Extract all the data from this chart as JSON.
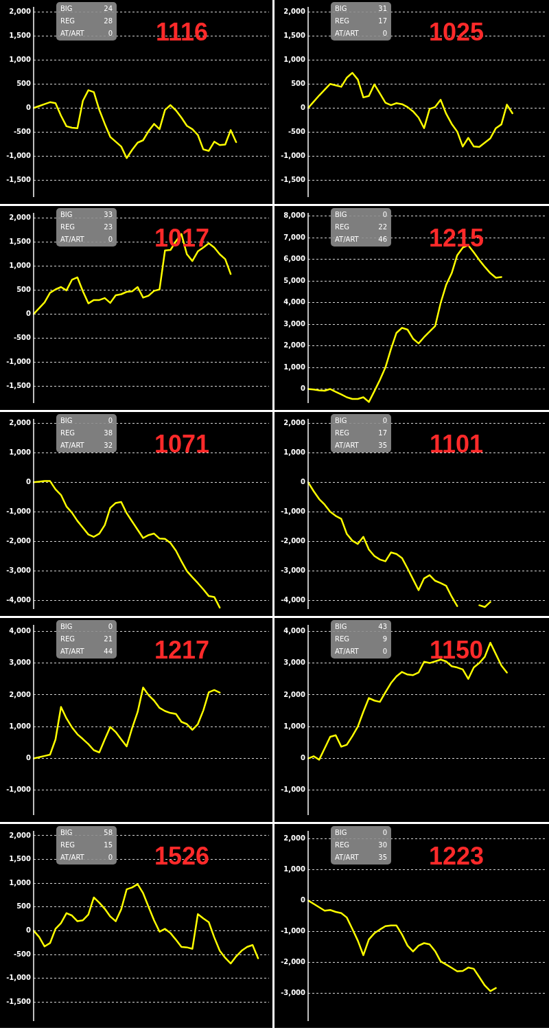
{
  "chart_data": [
    {
      "type": "line",
      "title": "1116",
      "annotations": [
        "BIG",
        "24",
        "REG",
        "28",
        "AT/ART",
        "0"
      ],
      "categories": [
        null,
        null,
        null,
        null,
        null,
        null,
        null,
        null,
        null,
        null,
        null,
        null,
        null,
        null,
        null,
        null,
        null,
        null,
        null,
        null,
        null,
        null,
        null,
        null,
        null,
        null,
        null,
        null,
        null,
        null,
        null,
        null,
        null,
        null,
        null,
        null,
        null,
        null,
        null,
        null,
        null,
        null,
        null,
        null
      ],
      "series": [
        {
          "color": "#ffff00",
          "values": [
            0,
            40,
            80,
            120,
            100,
            -160,
            -380,
            -410,
            -420,
            150,
            370,
            330,
            -40,
            -330,
            -600,
            -700,
            -800,
            -1040,
            -870,
            -720,
            -670,
            -480,
            -330,
            -440,
            -40,
            60,
            -50,
            -200,
            -370,
            -440,
            -560,
            -860,
            -890,
            -700,
            -770,
            -760,
            -460,
            -710,
            null,
            null,
            null,
            null,
            null,
            null
          ]
        }
      ],
      "ylim": [
        -1850,
        2100
      ],
      "yticks": [
        {
          "value": -1500,
          "label": "-1,500"
        },
        {
          "value": -1000,
          "label": "-1,000"
        },
        -500,
        0,
        500,
        {
          "value": 1000,
          "label": "1,000"
        },
        {
          "value": 1500,
          "label": "1,500"
        },
        {
          "value": 2000,
          "label": "2,000"
        }
      ],
      "grid": "y",
      "tick_labels": "y",
      "marker": "none",
      "line_style": "solid"
    },
    {
      "type": "line",
      "title": "1025",
      "annotations": [
        "BIG",
        "31",
        "REG",
        "17",
        "AT/ART",
        "0"
      ],
      "categories": [
        null,
        null,
        null,
        null,
        null,
        null,
        null,
        null,
        null,
        null,
        null,
        null,
        null,
        null,
        null,
        null,
        null,
        null,
        null,
        null,
        null,
        null,
        null,
        null,
        null,
        null,
        null,
        null,
        null,
        null,
        null,
        null,
        null,
        null,
        null,
        null,
        null,
        null,
        null,
        null,
        null,
        null,
        null,
        null
      ],
      "series": [
        {
          "color": "#ffff00",
          "values": [
            0,
            130,
            260,
            380,
            500,
            470,
            440,
            630,
            730,
            590,
            220,
            250,
            490,
            300,
            110,
            60,
            100,
            80,
            20,
            -70,
            -200,
            -420,
            -20,
            20,
            170,
            -120,
            -330,
            -490,
            -800,
            -620,
            -800,
            -810,
            -720,
            -630,
            -420,
            -340,
            70,
            -110,
            null,
            null,
            null,
            null,
            null,
            null
          ]
        }
      ],
      "ylim": [
        -1850,
        2100
      ],
      "yticks": [
        {
          "value": -1500,
          "label": "-1,500"
        },
        {
          "value": -1000,
          "label": "-1,000"
        },
        -500,
        0,
        500,
        {
          "value": 1000,
          "label": "1,000"
        },
        {
          "value": 1500,
          "label": "1,500"
        },
        {
          "value": 2000,
          "label": "2,000"
        }
      ],
      "grid": "y",
      "tick_labels": "y",
      "marker": "none",
      "line_style": "solid"
    },
    {
      "type": "line",
      "title": "1017",
      "annotations": [
        "BIG",
        "33",
        "REG",
        "23",
        "AT/ART",
        "0"
      ],
      "categories": [
        null,
        null,
        null,
        null,
        null,
        null,
        null,
        null,
        null,
        null,
        null,
        null,
        null,
        null,
        null,
        null,
        null,
        null,
        null,
        null,
        null,
        null,
        null,
        null,
        null,
        null,
        null,
        null,
        null,
        null,
        null,
        null,
        null,
        null,
        null,
        null,
        null,
        null,
        null,
        null,
        null,
        null,
        null,
        null
      ],
      "series": [
        {
          "color": "#ffff00",
          "values": [
            0,
            120,
            240,
            440,
            510,
            560,
            490,
            710,
            760,
            470,
            220,
            290,
            290,
            330,
            230,
            390,
            410,
            460,
            470,
            560,
            340,
            380,
            480,
            510,
            1320,
            1330,
            1510,
            1660,
            1240,
            1100,
            1300,
            1380,
            1470,
            1380,
            1240,
            1140,
            830,
            null,
            null,
            null,
            null,
            null,
            null,
            null
          ]
        }
      ],
      "ylim": [
        -1850,
        2100
      ],
      "yticks": [
        {
          "value": -1500,
          "label": "-1,500"
        },
        {
          "value": -1000,
          "label": "-1,000"
        },
        -500,
        0,
        500,
        {
          "value": 1000,
          "label": "1,000"
        },
        {
          "value": 1500,
          "label": "1,500"
        },
        {
          "value": 2000,
          "label": "2,000"
        }
      ],
      "grid": "y",
      "tick_labels": "y",
      "marker": "none",
      "line_style": "solid"
    },
    {
      "type": "line",
      "title": "1215",
      "annotations": [
        "BIG",
        "0",
        "REG",
        "22",
        "AT/ART",
        "46"
      ],
      "categories": [
        null,
        null,
        null,
        null,
        null,
        null,
        null,
        null,
        null,
        null,
        null,
        null,
        null,
        null,
        null,
        null,
        null,
        null,
        null,
        null,
        null,
        null,
        null,
        null,
        null,
        null,
        null,
        null,
        null,
        null,
        null,
        null,
        null,
        null,
        null,
        null,
        null,
        null,
        null,
        null,
        null,
        null,
        null,
        null
      ],
      "series": [
        {
          "color": "#ffff00",
          "values": [
            0,
            -20,
            -60,
            -80,
            0,
            -130,
            -250,
            -380,
            -460,
            -460,
            -380,
            -600,
            -100,
            420,
            1000,
            1850,
            2600,
            2830,
            2750,
            2330,
            2110,
            2400,
            2660,
            2910,
            3980,
            4820,
            5360,
            6190,
            6540,
            6650,
            6320,
            5970,
            5650,
            5360,
            5150,
            5180,
            null,
            null,
            null,
            null,
            null,
            null,
            null,
            null
          ]
        }
      ],
      "ylim": [
        -650,
        8150
      ],
      "yticks": [
        0,
        {
          "value": 1000,
          "label": "1,000"
        },
        {
          "value": 2000,
          "label": "2,000"
        },
        {
          "value": 3000,
          "label": "3,000"
        },
        {
          "value": 4000,
          "label": "4,000"
        },
        {
          "value": 5000,
          "label": "5,000"
        },
        {
          "value": 6000,
          "label": "6,000"
        },
        {
          "value": 7000,
          "label": "7,000"
        },
        {
          "value": 8000,
          "label": "8,000"
        }
      ],
      "grid": "y",
      "tick_labels": "y",
      "marker": "none",
      "line_style": "solid"
    },
    {
      "type": "line",
      "title": "1071",
      "annotations": [
        "BIG",
        "0",
        "REG",
        "38",
        "AT/ART",
        "32"
      ],
      "categories": [
        null,
        null,
        null,
        null,
        null,
        null,
        null,
        null,
        null,
        null,
        null,
        null,
        null,
        null,
        null,
        null,
        null,
        null,
        null,
        null,
        null,
        null,
        null,
        null,
        null,
        null,
        null,
        null,
        null,
        null,
        null,
        null,
        null,
        null,
        null,
        null,
        null,
        null,
        null,
        null,
        null,
        null,
        null,
        null
      ],
      "series": [
        {
          "color": "#ffff00",
          "values": [
            0,
            20,
            40,
            40,
            -240,
            -430,
            -820,
            -1030,
            -1310,
            -1540,
            -1770,
            -1850,
            -1740,
            -1450,
            -870,
            -700,
            -670,
            -1050,
            -1330,
            -1610,
            -1890,
            -1790,
            -1740,
            -1910,
            -1920,
            -2060,
            -2320,
            -2680,
            -3010,
            -3220,
            -3420,
            -3630,
            -3860,
            -3890,
            -4250,
            null,
            null,
            null,
            null,
            null,
            null,
            null,
            null,
            null
          ]
        }
      ],
      "ylim": [
        -4300,
        2150
      ],
      "yticks": [
        {
          "value": -4000,
          "label": "-4,000"
        },
        {
          "value": -3000,
          "label": "-3,000"
        },
        {
          "value": -2000,
          "label": "-2,000"
        },
        {
          "value": -1000,
          "label": "-1,000"
        },
        0,
        {
          "value": 1000,
          "label": "1,000"
        },
        {
          "value": 2000,
          "label": "2,000"
        }
      ],
      "grid": "y",
      "tick_labels": "y",
      "marker": "none",
      "line_style": "solid"
    },
    {
      "type": "line",
      "title": "1101",
      "annotations": [
        "BIG",
        "0",
        "REG",
        "17",
        "AT/ART",
        "35"
      ],
      "categories": [
        null,
        null,
        null,
        null,
        null,
        null,
        null,
        null,
        null,
        null,
        null,
        null,
        null,
        null,
        null,
        null,
        null,
        null,
        null,
        null,
        null,
        null,
        null,
        null,
        null,
        null,
        null,
        null,
        null,
        null,
        null,
        null,
        null,
        null,
        null,
        null,
        null,
        null,
        null,
        null,
        null,
        null,
        null,
        null
      ],
      "series": [
        {
          "color": "#ffff00",
          "values": [
            0,
            -300,
            -570,
            -760,
            -1000,
            -1140,
            -1240,
            -1750,
            -1980,
            -2090,
            -1850,
            -2280,
            -2500,
            -2620,
            -2680,
            -2380,
            -2430,
            -2570,
            -2920,
            -3290,
            -3660,
            -3260,
            -3150,
            -3340,
            -3420,
            -3510,
            -3880,
            -4200,
            null,
            null,
            null,
            -4170,
            -4230,
            -4060,
            null,
            null,
            null,
            null,
            null,
            null,
            null,
            null,
            null,
            null
          ]
        }
      ],
      "ylim": [
        -4300,
        2150
      ],
      "yticks": [
        {
          "value": -4000,
          "label": "-4,000"
        },
        {
          "value": -3000,
          "label": "-3,000"
        },
        {
          "value": -2000,
          "label": "-2,000"
        },
        {
          "value": -1000,
          "label": "-1,000"
        },
        0,
        {
          "value": 1000,
          "label": "1,000"
        },
        {
          "value": 2000,
          "label": "2,000"
        }
      ],
      "grid": "y",
      "tick_labels": "y",
      "marker": "none",
      "line_style": "solid"
    },
    {
      "type": "line",
      "title": "1217",
      "annotations": [
        "BIG",
        "0",
        "REG",
        "21",
        "AT/ART",
        "44"
      ],
      "categories": [
        null,
        null,
        null,
        null,
        null,
        null,
        null,
        null,
        null,
        null,
        null,
        null,
        null,
        null,
        null,
        null,
        null,
        null,
        null,
        null,
        null,
        null,
        null,
        null,
        null,
        null,
        null,
        null,
        null,
        null,
        null,
        null,
        null,
        null,
        null,
        null,
        null,
        null,
        null,
        null,
        null,
        null,
        null,
        null
      ],
      "series": [
        {
          "color": "#ffff00",
          "values": [
            0,
            40,
            80,
            120,
            600,
            1620,
            1260,
            980,
            760,
            610,
            450,
            260,
            190,
            600,
            990,
            830,
            600,
            380,
            960,
            1460,
            2230,
            1990,
            1820,
            1590,
            1490,
            1430,
            1400,
            1150,
            1080,
            900,
            1080,
            1510,
            2080,
            2150,
            2070,
            null,
            null,
            null,
            null,
            null,
            null,
            null,
            null,
            null
          ]
        }
      ],
      "ylim": [
        -1780,
        4200
      ],
      "yticks": [
        {
          "value": -1000,
          "label": "-1,000"
        },
        0,
        {
          "value": 1000,
          "label": "1,000"
        },
        {
          "value": 2000,
          "label": "2,000"
        },
        {
          "value": 3000,
          "label": "3,000"
        },
        {
          "value": 4000,
          "label": "4,000"
        }
      ],
      "grid": "y",
      "tick_labels": "y",
      "marker": "none",
      "line_style": "solid"
    },
    {
      "type": "line",
      "title": "1150",
      "annotations": [
        "BIG",
        "43",
        "REG",
        "9",
        "AT/ART",
        "0"
      ],
      "categories": [
        null,
        null,
        null,
        null,
        null,
        null,
        null,
        null,
        null,
        null,
        null,
        null,
        null,
        null,
        null,
        null,
        null,
        null,
        null,
        null,
        null,
        null,
        null,
        null,
        null,
        null,
        null,
        null,
        null,
        null,
        null,
        null,
        null,
        null,
        null,
        null,
        null,
        null,
        null,
        null,
        null,
        null,
        null,
        null
      ],
      "series": [
        {
          "color": "#ffff00",
          "values": [
            0,
            70,
            -40,
            320,
            680,
            730,
            370,
            430,
            700,
            1000,
            1470,
            1900,
            1820,
            1780,
            2080,
            2370,
            2580,
            2720,
            2640,
            2620,
            2700,
            3040,
            3000,
            3050,
            3110,
            3050,
            2900,
            2860,
            2800,
            2500,
            2860,
            3000,
            3200,
            3640,
            3280,
            2920,
            2700,
            null,
            null,
            null,
            null,
            null,
            null,
            null
          ]
        }
      ],
      "ylim": [
        -1780,
        4200
      ],
      "yticks": [
        {
          "value": -1000,
          "label": "-1,000"
        },
        0,
        {
          "value": 1000,
          "label": "1,000"
        },
        {
          "value": 2000,
          "label": "2,000"
        },
        {
          "value": 3000,
          "label": "3,000"
        },
        {
          "value": 4000,
          "label": "4,000"
        }
      ],
      "grid": "y",
      "tick_labels": "y",
      "marker": "none",
      "line_style": "solid"
    },
    {
      "type": "line",
      "title": "1526",
      "annotations": [
        "BIG",
        "58",
        "REG",
        "15",
        "AT/ART",
        "0"
      ],
      "categories": [
        null,
        null,
        null,
        null,
        null,
        null,
        null,
        null,
        null,
        null,
        null,
        null,
        null,
        null,
        null,
        null,
        null,
        null,
        null,
        null,
        null,
        null,
        null,
        null,
        null,
        null,
        null,
        null,
        null,
        null,
        null,
        null,
        null,
        null,
        null,
        null,
        null,
        null,
        null,
        null,
        null,
        null,
        null,
        null
      ],
      "series": [
        {
          "color": "#ffff00",
          "values": [
            0,
            -130,
            -330,
            -260,
            40,
            160,
            370,
            320,
            200,
            220,
            340,
            700,
            590,
            460,
            300,
            200,
            450,
            870,
            910,
            980,
            790,
            500,
            220,
            -20,
            40,
            -50,
            -190,
            -340,
            -350,
            -380,
            350,
            260,
            180,
            -140,
            -420,
            -570,
            -690,
            -540,
            -420,
            -340,
            -300,
            -580,
            null,
            null
          ]
        }
      ],
      "ylim": [
        -1900,
        2100
      ],
      "yticks": [
        {
          "value": -1500,
          "label": "-1,500"
        },
        {
          "value": -1000,
          "label": "-1,000"
        },
        -500,
        0,
        500,
        {
          "value": 1000,
          "label": "1,000"
        },
        {
          "value": 1500,
          "label": "1,500"
        },
        {
          "value": 2000,
          "label": "2,000"
        }
      ],
      "grid": "y",
      "tick_labels": "y",
      "marker": "none",
      "line_style": "solid"
    },
    {
      "type": "line",
      "title": "1223",
      "annotations": [
        "BIG",
        "0",
        "REG",
        "30",
        "AT/ART",
        "35"
      ],
      "categories": [
        null,
        null,
        null,
        null,
        null,
        null,
        null,
        null,
        null,
        null,
        null,
        null,
        null,
        null,
        null,
        null,
        null,
        null,
        null,
        null,
        null,
        null,
        null,
        null,
        null,
        null,
        null,
        null,
        null,
        null,
        null,
        null,
        null,
        null,
        null,
        null,
        null,
        null,
        null,
        null,
        null,
        null,
        null,
        null
      ],
      "series": [
        {
          "color": "#ffff00",
          "values": [
            0,
            -110,
            -220,
            -330,
            -310,
            -370,
            -410,
            -550,
            -920,
            -1300,
            -1770,
            -1260,
            -1060,
            -940,
            -830,
            -810,
            -810,
            -1100,
            -1460,
            -1650,
            -1460,
            -1380,
            -1420,
            -1640,
            -1970,
            -2070,
            -2180,
            -2290,
            -2280,
            -2170,
            -2210,
            -2480,
            -2750,
            -2930,
            -2830,
            null,
            null,
            null,
            null,
            null,
            null,
            null,
            null,
            null
          ]
        }
      ],
      "ylim": [
        -3900,
        2250
      ],
      "yticks": [
        {
          "value": -3000,
          "label": "-3,000"
        },
        {
          "value": -2000,
          "label": "-2,000"
        },
        {
          "value": -1000,
          "label": "-1,000"
        },
        0,
        {
          "value": 1000,
          "label": "1,000"
        },
        {
          "value": 2000,
          "label": "2,000"
        }
      ],
      "grid": "y",
      "tick_labels": "y",
      "marker": "none",
      "line_style": "solid"
    }
  ]
}
